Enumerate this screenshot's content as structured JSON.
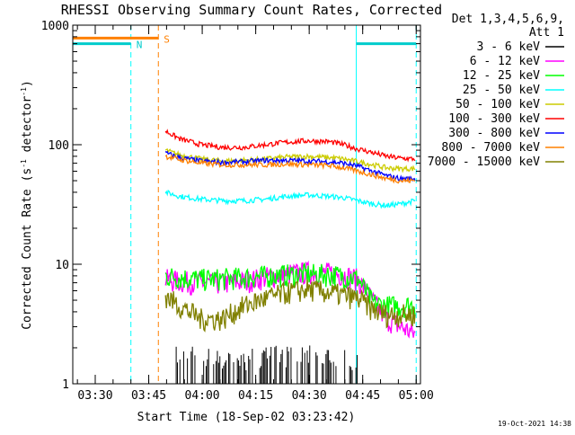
{
  "chart_data": {
    "type": "line",
    "title": "RHESSI Observing Summary Count Rates, Corrected",
    "xlabel": "Start Time (18-Sep-02 03:23:42)",
    "ylabel_main": "Corrected Count Rate (s",
    "ylabel_sup1": "-1",
    "ylabel_mid": " detector",
    "ylabel_sup2": "-1",
    "ylabel_end": ")",
    "y_scale": "log",
    "ylim": [
      1,
      1000
    ],
    "y_ticks": [
      {
        "value": 1,
        "label": "1"
      },
      {
        "value": 10,
        "label": "10"
      },
      {
        "value": 100,
        "label": "100"
      },
      {
        "value": 1000,
        "label": "1000"
      }
    ],
    "x_range_minutes": [
      0,
      97.5
    ],
    "x_ticks": [
      {
        "label": "03:30",
        "minute": 6.3
      },
      {
        "label": "03:45",
        "minute": 21.3
      },
      {
        "label": "04:00",
        "minute": 36.3
      },
      {
        "label": "04:15",
        "minute": 51.3
      },
      {
        "label": "04:30",
        "minute": 66.3
      },
      {
        "label": "04:45",
        "minute": 81.3
      },
      {
        "label": "05:00",
        "minute": 96.3
      }
    ],
    "legend": {
      "header1": "Det 1,3,4,5,6,9,",
      "header2": "Att 1",
      "placement": "right"
    },
    "series": [
      {
        "name": "3 - 6 keV",
        "color": "#000000",
        "x": [
          29,
          34,
          40,
          46,
          52,
          58,
          64,
          70,
          76,
          80
        ],
        "y": [
          1.5,
          1.5,
          1.4,
          1.3,
          1.5,
          1.5,
          1.5,
          1.5,
          1.5,
          1.4
        ]
      },
      {
        "name": "6 - 12 keV",
        "color": "#ff00ff",
        "x": [
          26,
          30,
          36,
          42,
          48,
          54,
          60,
          66,
          72,
          76,
          80,
          84,
          88,
          92,
          96
        ],
        "y": [
          7.5,
          7.2,
          7.0,
          7.0,
          7.2,
          7.8,
          8.3,
          8.6,
          8.5,
          8.2,
          7.5,
          5.0,
          3.5,
          3.0,
          2.6
        ]
      },
      {
        "name": "12 - 25 keV",
        "color": "#00ff00",
        "x": [
          26,
          30,
          36,
          42,
          48,
          54,
          60,
          66,
          72,
          76,
          80,
          84,
          88,
          92,
          96
        ],
        "y": [
          8.0,
          7.8,
          7.5,
          7.6,
          7.8,
          8.0,
          8.2,
          8.3,
          8.2,
          8.0,
          7.6,
          4.8,
          4.5,
          4.5,
          4.6
        ]
      },
      {
        "name": "25 - 50 keV",
        "color": "#00ffff",
        "x": [
          26,
          30,
          36,
          42,
          48,
          54,
          60,
          66,
          72,
          76,
          80,
          84,
          88,
          92,
          96
        ],
        "y": [
          40,
          37,
          35,
          34,
          34,
          35,
          37,
          38,
          37,
          36,
          34,
          32,
          31,
          32,
          34
        ]
      },
      {
        "name": "50 - 100 keV",
        "color": "#cccc00",
        "x": [
          26,
          30,
          36,
          42,
          48,
          54,
          60,
          66,
          72,
          76,
          80,
          84,
          88,
          92,
          96
        ],
        "y": [
          90,
          82,
          76,
          73,
          74,
          76,
          79,
          80,
          78,
          76,
          72,
          68,
          64,
          63,
          63
        ]
      },
      {
        "name": "100 - 300 keV",
        "color": "#ff0000",
        "x": [
          26,
          30,
          36,
          42,
          48,
          54,
          60,
          66,
          72,
          76,
          80,
          84,
          88,
          92,
          96
        ],
        "y": [
          130,
          112,
          100,
          95,
          95,
          100,
          105,
          108,
          106,
          100,
          92,
          86,
          80,
          77,
          76
        ]
      },
      {
        "name": "300 - 800 keV",
        "color": "#0000ff",
        "x": [
          26,
          30,
          36,
          42,
          48,
          54,
          60,
          66,
          72,
          76,
          80,
          84,
          88,
          92,
          96
        ],
        "y": [
          85,
          78,
          73,
          71,
          72,
          74,
          74,
          73,
          72,
          70,
          66,
          60,
          55,
          52,
          52
        ]
      },
      {
        "name": "800 - 7000 keV",
        "color": "#ff8000",
        "x": [
          26,
          30,
          36,
          42,
          48,
          54,
          60,
          66,
          72,
          76,
          80,
          84,
          88,
          92,
          96
        ],
        "y": [
          80,
          75,
          70,
          68,
          68,
          68,
          69,
          68,
          67,
          64,
          60,
          56,
          52,
          50,
          50
        ]
      },
      {
        "name": "7000 - 15000 keV",
        "color": "#808000",
        "x": [
          26,
          30,
          36,
          42,
          48,
          54,
          60,
          66,
          72,
          76,
          80,
          84,
          88,
          92,
          96
        ],
        "y": [
          5.5,
          4.5,
          3.5,
          3.5,
          4.5,
          5.2,
          5.8,
          6.2,
          5.8,
          5.5,
          5.2,
          4.2,
          3.8,
          3.8,
          3.8
        ]
      }
    ],
    "annotations": [
      {
        "label": "N",
        "color": "#00cccc",
        "x_start": 0,
        "x_end": 16.3,
        "y": 700
      },
      {
        "label": "S",
        "color": "#ff8000",
        "x_start": 0,
        "x_end": 24.0,
        "y": 780
      }
    ],
    "cyan_markers_minutes": [
      16.3,
      79.5,
      96.3
    ],
    "orange_markers_minutes": [
      24.0
    ],
    "timestamp": "19-Oct-2021 14:38"
  }
}
